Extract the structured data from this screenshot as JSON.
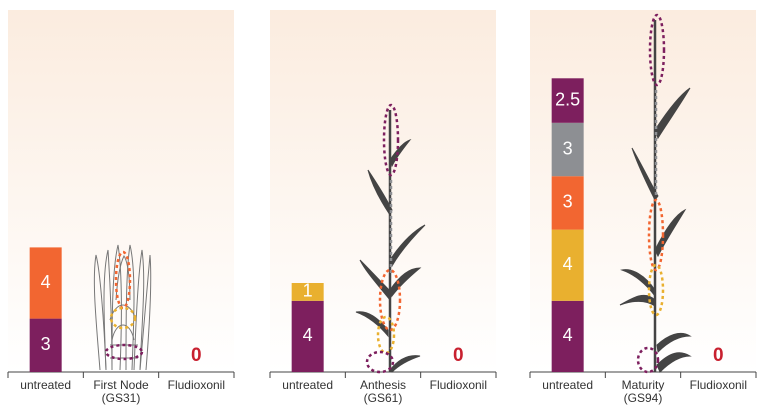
{
  "chart_data": [
    {
      "type": "bar",
      "stacked": true,
      "categories": [
        "untreated",
        "First Node (GS31)",
        "Fludioxonil"
      ],
      "series": [
        {
          "color": "#7d1f5e",
          "values": [
            3,
            null,
            0
          ]
        },
        {
          "color": "#f26631",
          "values": [
            4,
            null,
            null
          ]
        }
      ],
      "zero_color": "#c8202f"
    },
    {
      "type": "bar",
      "stacked": true,
      "categories": [
        "untreated",
        "Anthesis (GS61)",
        "Fludioxonil"
      ],
      "series": [
        {
          "color": "#7d1f5e",
          "values": [
            4,
            null,
            0
          ]
        },
        {
          "color": "#e9b02f",
          "values": [
            1,
            null,
            null
          ]
        }
      ],
      "zero_color": "#c8202f"
    },
    {
      "type": "bar",
      "stacked": true,
      "categories": [
        "untreated",
        "Maturity (GS94)",
        "Fludioxonil"
      ],
      "series": [
        {
          "color": "#7d1f5e",
          "values": [
            4,
            null,
            0
          ]
        },
        {
          "color": "#e9b02f",
          "values": [
            4,
            null,
            null
          ]
        },
        {
          "color": "#f26631",
          "values": [
            3,
            null,
            null
          ]
        },
        {
          "color": "#8d8f93",
          "values": [
            3,
            null,
            null
          ]
        },
        {
          "color": "#7d1f5e",
          "values": [
            2.5,
            null,
            null
          ]
        }
      ],
      "zero_color": "#c8202f"
    }
  ]
}
